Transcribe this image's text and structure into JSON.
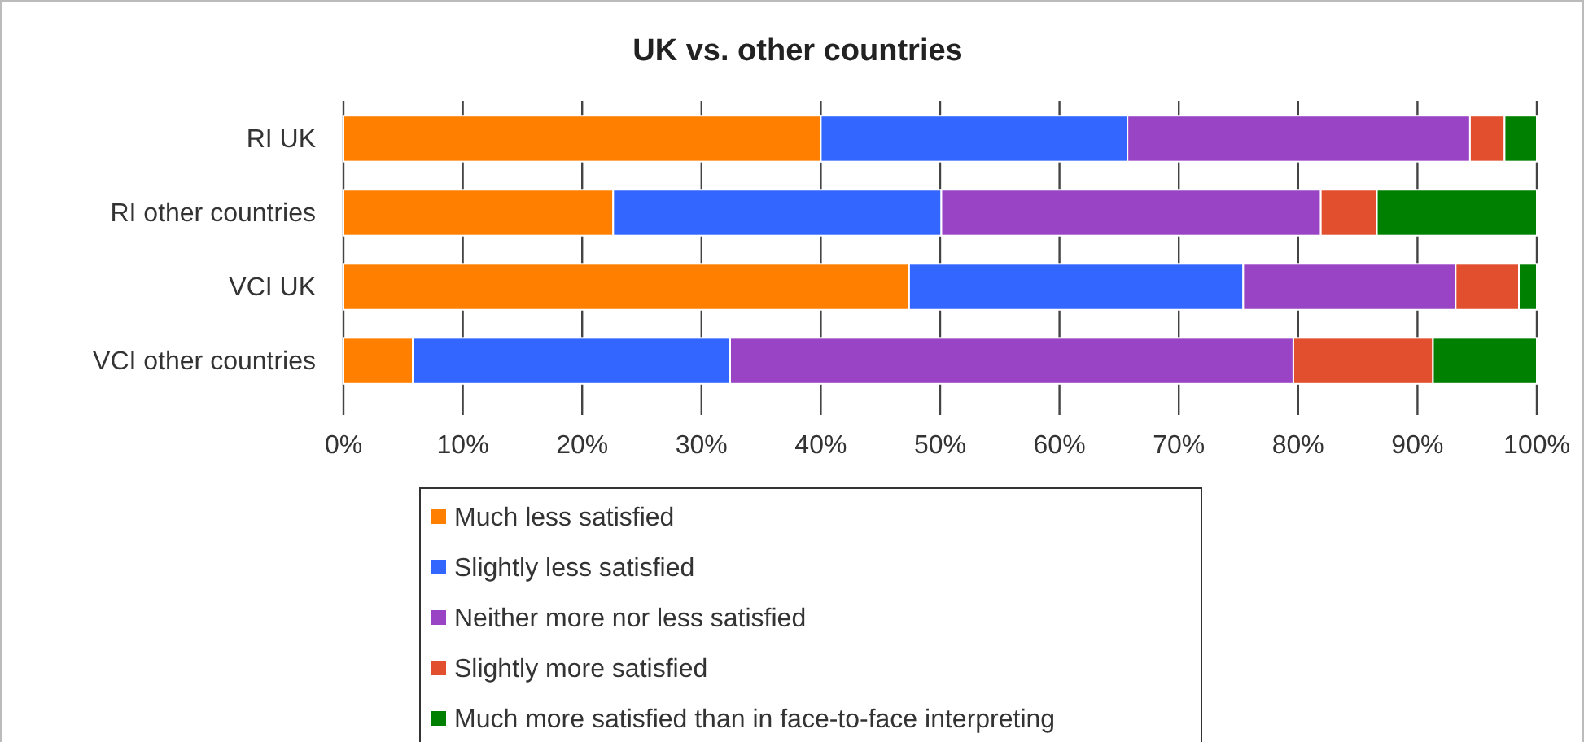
{
  "chart_data": {
    "type": "bar",
    "title": "UK vs. other countries",
    "orientation": "horizontal",
    "stacked": true,
    "categories": [
      "RI UK",
      "RI other countries",
      "VCI UK",
      "VCI other countries"
    ],
    "series": [
      {
        "name": "Much less satisfied",
        "color": "#ff8000",
        "values": [
          40,
          22.6,
          47.4,
          5.8
        ]
      },
      {
        "name": "Slightly less satisfied",
        "color": "#3366ff",
        "values": [
          25.7,
          27.5,
          28,
          26.6
        ]
      },
      {
        "name": "Neither more nor less satisfied",
        "color": "#9944c4",
        "values": [
          28.7,
          31.8,
          17.8,
          47.2
        ]
      },
      {
        "name": "Slightly more satisfied",
        "color": "#e24f2f",
        "values": [
          2.9,
          4.7,
          5.3,
          11.7
        ]
      },
      {
        "name": "Much more satisfied than in face-to-face interpreting",
        "color": "#008000",
        "values": [
          2.7,
          13.4,
          1.5,
          8.7
        ]
      }
    ],
    "xlim": [
      0,
      100
    ],
    "xticks": [
      {
        "value": 0,
        "label": "0%"
      },
      {
        "value": 10,
        "label": "10%"
      },
      {
        "value": 20,
        "label": "20%"
      },
      {
        "value": 30,
        "label": "30%"
      },
      {
        "value": 40,
        "label": "40%"
      },
      {
        "value": 50,
        "label": "50%"
      },
      {
        "value": 60,
        "label": "60%"
      },
      {
        "value": 70,
        "label": "70%"
      },
      {
        "value": 80,
        "label": "80%"
      },
      {
        "value": 90,
        "label": "90%"
      },
      {
        "value": 100,
        "label": "100%"
      }
    ],
    "grid": "x",
    "legend": "bottom"
  }
}
